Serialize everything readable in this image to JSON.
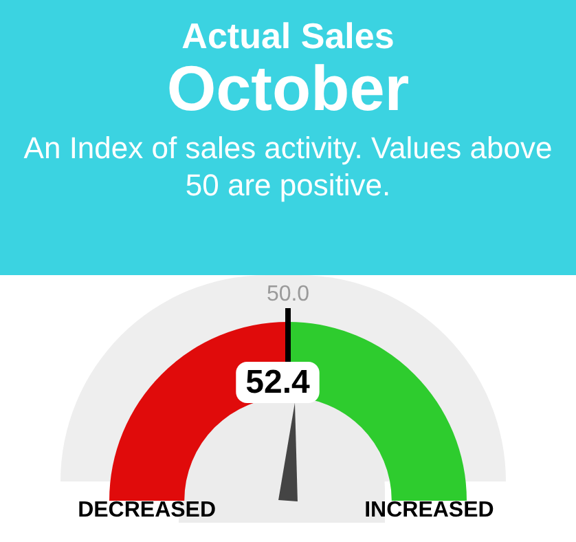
{
  "chart_data": {
    "type": "donut",
    "title": "Actual Sales",
    "subtitle": "October",
    "categories": [
      "DECREASED",
      "INCREASED"
    ],
    "values": [
      50,
      50
    ],
    "colors": [
      "#e00b0b",
      "#2ecc2e"
    ],
    "needle": "INCREASED",
    "annotations": [
      "An Index of sales activity. Values above 50 are positive.",
      "50.0",
      "52.4"
    ]
  }
}
